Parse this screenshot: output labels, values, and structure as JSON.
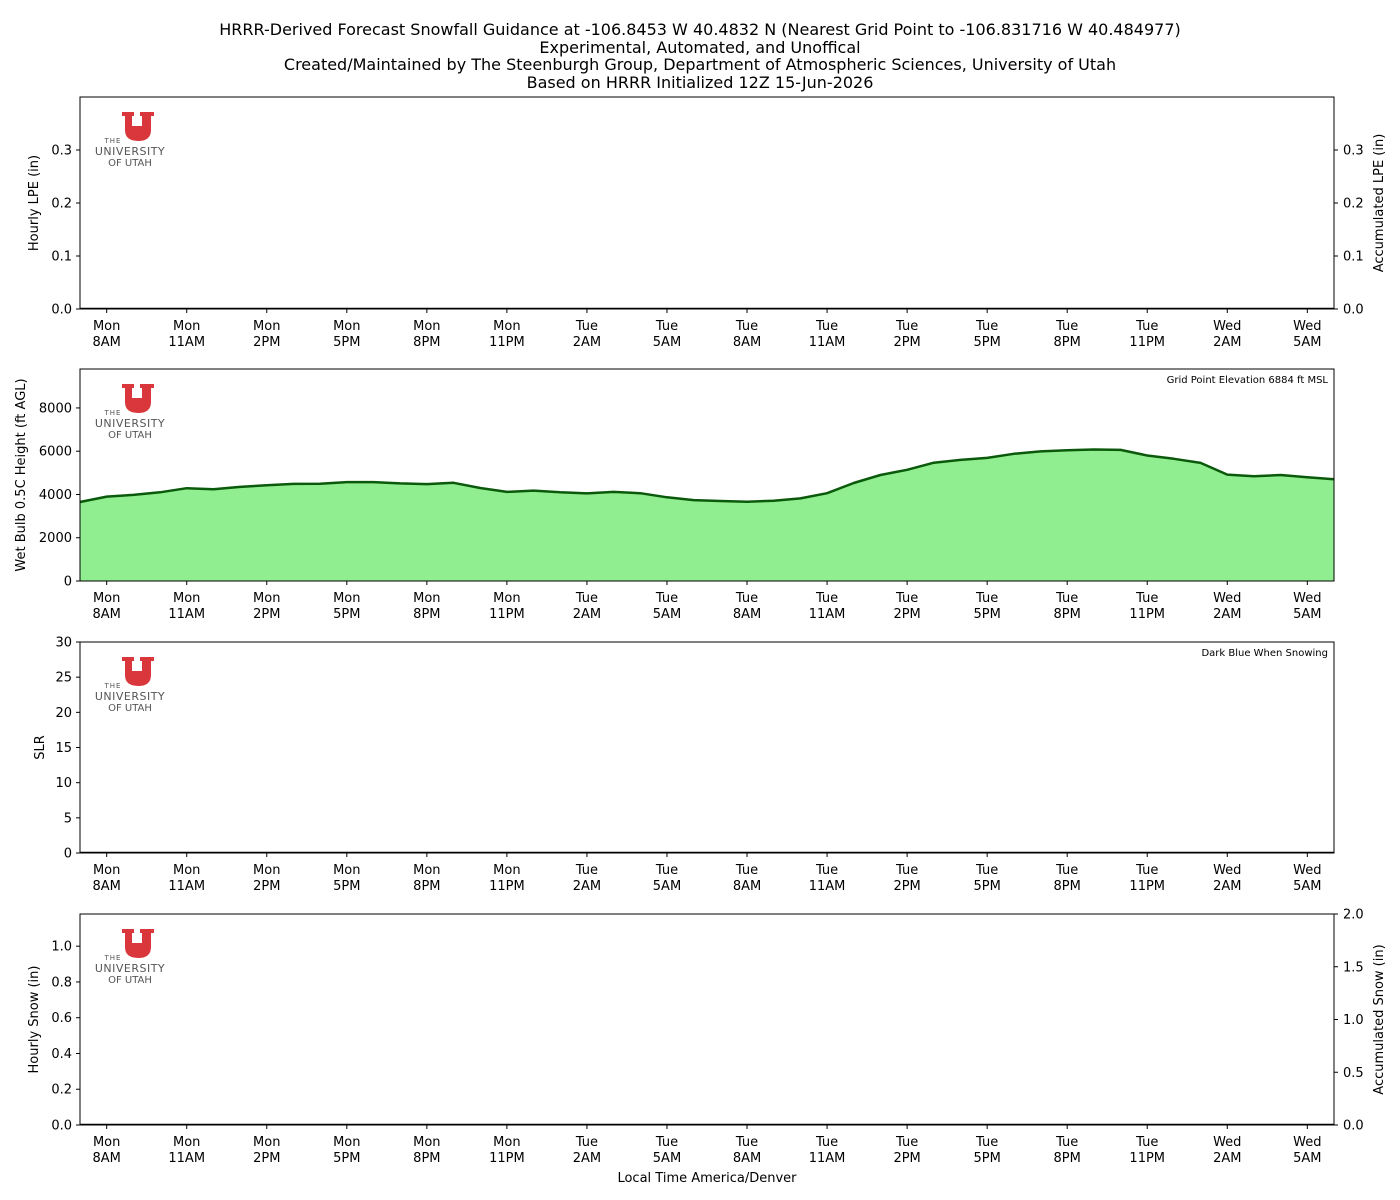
{
  "title_lines": [
    "HRRR-Derived Forecast Snowfall Guidance at -106.8453 W 40.4832 N (Nearest Grid Point to -106.831716 W 40.484977)",
    "Experimental, Automated, and Unoffical",
    "Created/Maintained by The Steenburgh Group, Department of Atmospheric Sciences, University of Utah",
    "Based on HRRR Initialized 12Z 15-Jun-2026"
  ],
  "logo": {
    "line1": "THE",
    "line2": "UNIVERSITY",
    "line3": "OF UTAH",
    "color": "#d9373c"
  },
  "x_axis": {
    "label": "Local Time America/Denver",
    "tick_hours": [
      0,
      3,
      6,
      9,
      12,
      15,
      18,
      21,
      24,
      27,
      30,
      33,
      36,
      39,
      42,
      45
    ],
    "tick_labels": [
      [
        "Mon",
        "8AM"
      ],
      [
        "Mon",
        "11AM"
      ],
      [
        "Mon",
        "2PM"
      ],
      [
        "Mon",
        "5PM"
      ],
      [
        "Mon",
        "8PM"
      ],
      [
        "Mon",
        "11PM"
      ],
      [
        "Tue",
        "2AM"
      ],
      [
        "Tue",
        "5AM"
      ],
      [
        "Tue",
        "8AM"
      ],
      [
        "Tue",
        "11AM"
      ],
      [
        "Tue",
        "2PM"
      ],
      [
        "Tue",
        "5PM"
      ],
      [
        "Tue",
        "8PM"
      ],
      [
        "Tue",
        "11PM"
      ],
      [
        "Wed",
        "2AM"
      ],
      [
        "Wed",
        "5AM"
      ]
    ],
    "range": [
      -1,
      46
    ]
  },
  "chart_data": [
    {
      "type": "bar",
      "ylabel": "Hourly LPE (in)",
      "ylabel_right": "Accumulated LPE (in)",
      "ylim": [
        0,
        0.4
      ],
      "yticks": [
        "0.0",
        "0.1",
        "0.2",
        "0.3"
      ],
      "ytick_values": [
        0,
        0.1,
        0.2,
        0.3
      ],
      "yticks_right": [
        "0.0",
        "0.1",
        "0.2",
        "0.3"
      ],
      "series": [],
      "note": ""
    },
    {
      "type": "area",
      "ylabel": "Wet Bulb 0.5C Height (ft AGL)",
      "ylim": [
        0,
        9800
      ],
      "yticks": [
        "0",
        "2000",
        "4000",
        "6000",
        "8000"
      ],
      "ytick_values": [
        0,
        2000,
        4000,
        6000,
        8000
      ],
      "annotation": "Grid Point Elevation 6884 ft MSL",
      "colors": {
        "fill": "#90ee90",
        "line": "#0b5a0b"
      },
      "x": [
        -1,
        0,
        1,
        2,
        3,
        4,
        5,
        6,
        7,
        8,
        9,
        10,
        11,
        12,
        13,
        14,
        15,
        16,
        17,
        18,
        19,
        20,
        21,
        22,
        23,
        24,
        25,
        26,
        27,
        28,
        29,
        30,
        31,
        32,
        33,
        34,
        35,
        36,
        37,
        38,
        39,
        40,
        41,
        42,
        43,
        44,
        45,
        46
      ],
      "values": [
        3650,
        3900,
        3980,
        4100,
        4290,
        4240,
        4350,
        4430,
        4490,
        4500,
        4570,
        4570,
        4510,
        4480,
        4540,
        4300,
        4120,
        4180,
        4100,
        4050,
        4120,
        4060,
        3870,
        3740,
        3700,
        3660,
        3710,
        3820,
        4060,
        4530,
        4900,
        5140,
        5470,
        5600,
        5690,
        5880,
        5990,
        6040,
        6080,
        6060,
        5800,
        5650,
        5460,
        4920,
        4840,
        4900,
        4800,
        4700
      ]
    },
    {
      "type": "bar",
      "ylabel": "SLR",
      "ylim": [
        0,
        30
      ],
      "yticks": [
        "0",
        "5",
        "10",
        "15",
        "20",
        "25",
        "30"
      ],
      "ytick_values": [
        0,
        5,
        10,
        15,
        20,
        25,
        30
      ],
      "annotation": "Dark Blue When Snowing",
      "series": []
    },
    {
      "type": "bar",
      "ylabel": "Hourly Snow (in)",
      "ylabel_right": "Accumulated Snow (in)",
      "ylim": [
        0,
        1.18
      ],
      "yticks": [
        "0.0",
        "0.2",
        "0.4",
        "0.6",
        "0.8",
        "1.0"
      ],
      "ytick_values": [
        0,
        0.2,
        0.4,
        0.6,
        0.8,
        1.0
      ],
      "yticks_right": [
        "0.0",
        "0.5",
        "1.0",
        "1.5",
        "2.0"
      ],
      "ytick_right_values": [
        0,
        0.5,
        1.0,
        1.5,
        2.0
      ],
      "ylim_right": [
        0,
        2.0
      ],
      "series": []
    }
  ]
}
